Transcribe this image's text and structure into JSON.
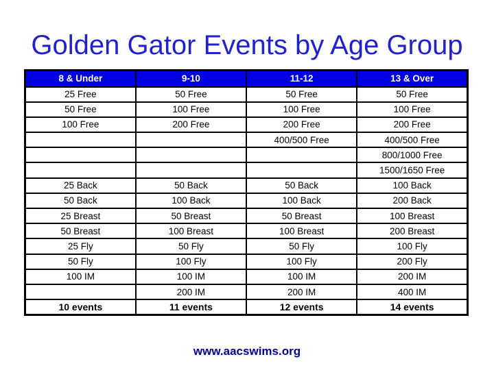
{
  "title": "Golden Gator Events by Age Group",
  "footer": "www.aacswims.org",
  "colors": {
    "title_text": "#2222cc",
    "header_background": "#0000e0",
    "header_text": "#ffffff",
    "cell_text": "#000000",
    "table_border": "#000000",
    "footer_text": "#000099",
    "page_background": "#ffffff"
  },
  "table": {
    "columns": [
      "8 & Under",
      "9-10",
      "11-12",
      "13 & Over"
    ],
    "rows": [
      [
        "25 Free",
        "50 Free",
        "50 Free",
        "50 Free"
      ],
      [
        "50 Free",
        "100 Free",
        "100 Free",
        "100 Free"
      ],
      [
        "100 Free",
        "200 Free",
        "200 Free",
        "200 Free"
      ],
      [
        "",
        "",
        "400/500 Free",
        "400/500 Free"
      ],
      [
        "",
        "",
        "",
        "800/1000 Free"
      ],
      [
        "",
        "",
        "",
        "1500/1650 Free"
      ],
      [
        "25 Back",
        "50 Back",
        "50 Back",
        "100 Back"
      ],
      [
        "50 Back",
        "100 Back",
        "100 Back",
        "200 Back"
      ],
      [
        "25 Breast",
        "50 Breast",
        "50 Breast",
        "100 Breast"
      ],
      [
        "50 Breast",
        "100 Breast",
        "100 Breast",
        "200 Breast"
      ],
      [
        "25 Fly",
        "50 Fly",
        "50 Fly",
        "100 Fly"
      ],
      [
        "50 Fly",
        "100 Fly",
        "100 Fly",
        "200 Fly"
      ],
      [
        "100 IM",
        "100 IM",
        "100 IM",
        "200 IM"
      ],
      [
        "",
        "200 IM",
        "200 IM",
        "400 IM"
      ],
      [
        "10 events",
        "11 events",
        "12 events",
        "14 events"
      ]
    ],
    "totals_row": [
      "10 events",
      "11 events",
      "12 events",
      "14 events"
    ]
  }
}
